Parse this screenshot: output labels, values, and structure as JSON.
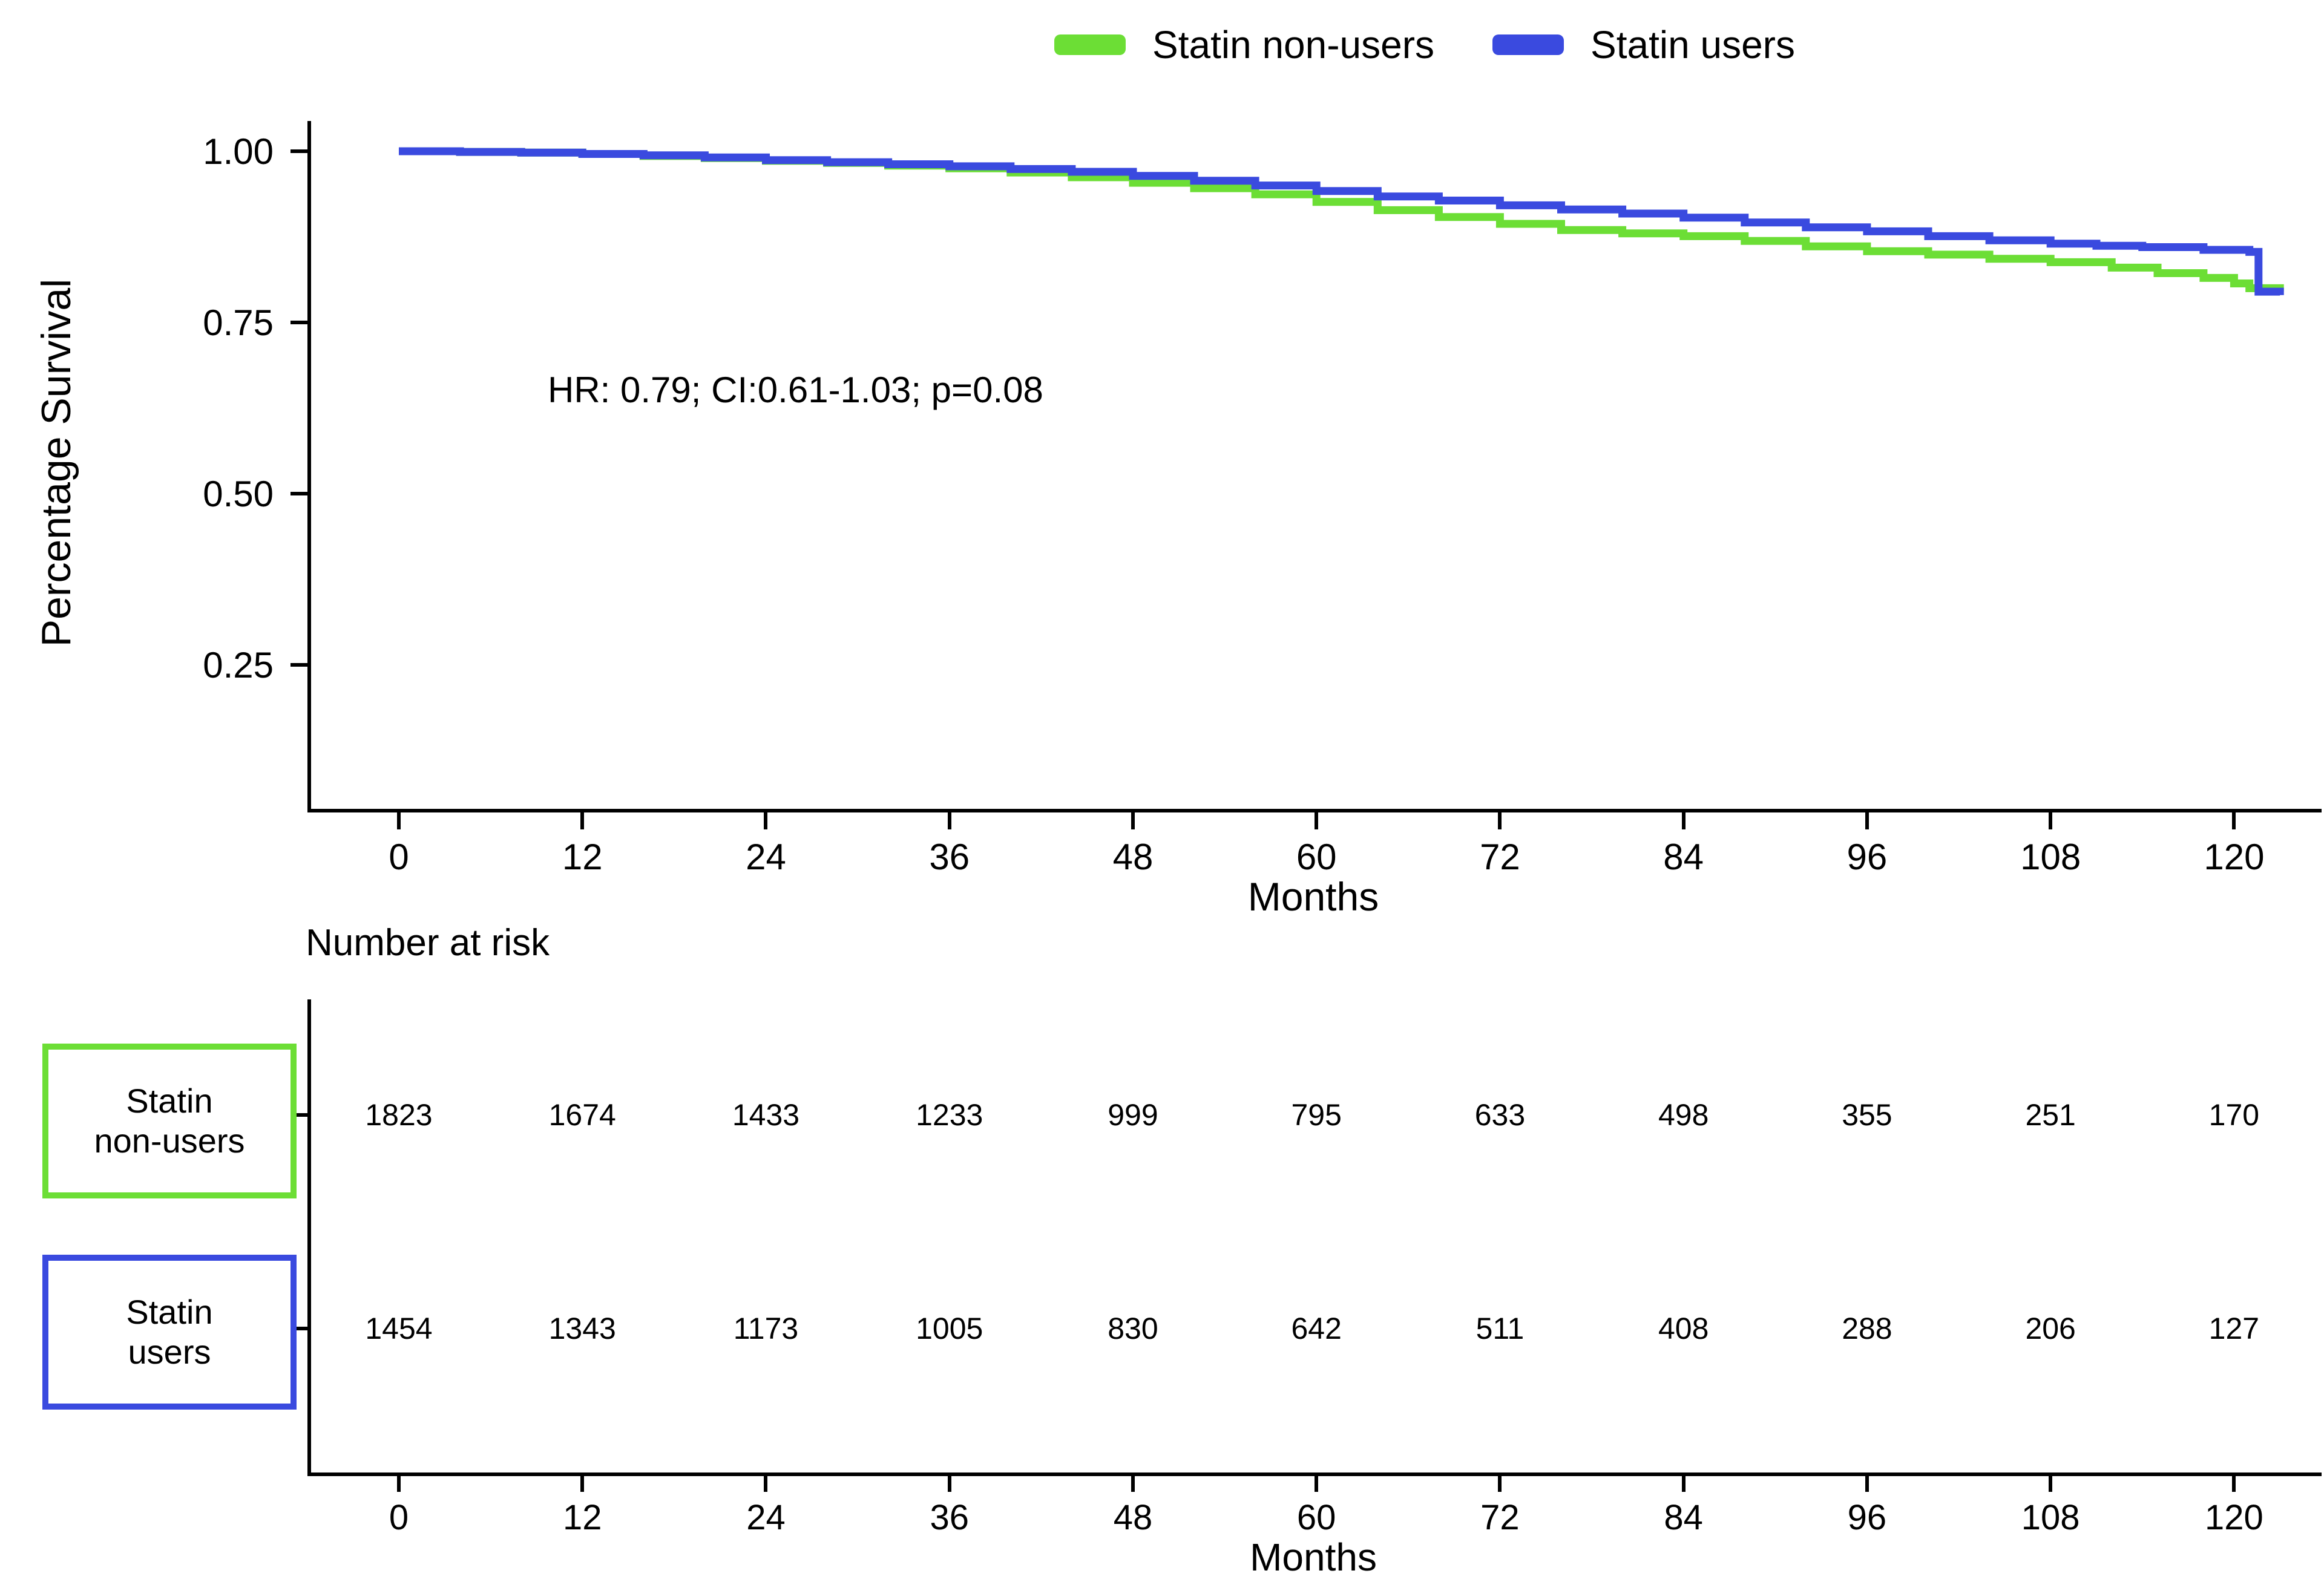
{
  "figure": {
    "legend": {
      "items": [
        {
          "label": "Statin non-users",
          "color": "#6CDE35"
        },
        {
          "label": "Statin users",
          "color": "#3A4ADF"
        }
      ]
    }
  },
  "chart_data": {
    "type": "line",
    "subtype": "kaplan-meier-step",
    "step": "after",
    "title": "",
    "xlabel": "Months",
    "ylabel": "Percentage Survival",
    "annotation": "HR: 0.79; CI:0.61-1.03; p=0.08",
    "xlim": [
      -2,
      124
    ],
    "ylim": [
      0.03,
      1.04
    ],
    "x_ticks": [
      0,
      12,
      24,
      36,
      48,
      60,
      72,
      84,
      96,
      108,
      120
    ],
    "y_ticks": [
      {
        "label": "1.00",
        "value": 1.0
      },
      {
        "label": "0.75",
        "value": 0.75
      },
      {
        "label": "0.50",
        "value": 0.5
      },
      {
        "label": "0.25",
        "value": 0.25
      }
    ],
    "grid": false,
    "legend_position": "top",
    "series": [
      {
        "name": "Statin non-users",
        "color": "#6CDE35",
        "x": [
          0,
          4,
          8,
          12,
          16,
          20,
          24,
          28,
          32,
          36,
          40,
          44,
          48,
          52,
          56,
          60,
          64,
          68,
          72,
          76,
          80,
          84,
          88,
          92,
          96,
          100,
          104,
          108,
          112,
          115,
          118,
          120,
          121,
          123
        ],
        "y": [
          1.0,
          0.999,
          0.998,
          0.996,
          0.993,
          0.99,
          0.986,
          0.983,
          0.979,
          0.975,
          0.969,
          0.962,
          0.954,
          0.946,
          0.937,
          0.926,
          0.914,
          0.904,
          0.894,
          0.885,
          0.88,
          0.876,
          0.869,
          0.861,
          0.854,
          0.849,
          0.843,
          0.838,
          0.83,
          0.822,
          0.815,
          0.807,
          0.8,
          0.795
        ]
      },
      {
        "name": "Statin users",
        "color": "#3A4ADF",
        "x": [
          0,
          4,
          8,
          12,
          16,
          20,
          24,
          28,
          32,
          36,
          40,
          44,
          48,
          52,
          56,
          60,
          64,
          68,
          72,
          76,
          80,
          84,
          88,
          92,
          96,
          100,
          104,
          108,
          111,
          114,
          118,
          121,
          121.6,
          123
        ],
        "y": [
          1.0,
          0.999,
          0.998,
          0.996,
          0.994,
          0.991,
          0.987,
          0.984,
          0.981,
          0.978,
          0.974,
          0.97,
          0.964,
          0.957,
          0.95,
          0.942,
          0.934,
          0.928,
          0.921,
          0.915,
          0.909,
          0.903,
          0.896,
          0.889,
          0.883,
          0.876,
          0.87,
          0.865,
          0.862,
          0.86,
          0.856,
          0.853,
          0.795,
          0.79
        ]
      }
    ],
    "number_at_risk": {
      "title": "Number at risk",
      "xlabel": "Months",
      "months": [
        0,
        12,
        24,
        36,
        48,
        60,
        72,
        84,
        96,
        108,
        120
      ],
      "rows": [
        {
          "group": "Statin non-users",
          "label_lines": [
            "Statin",
            "non-users"
          ],
          "color": "#6CDE35",
          "values": [
            1823,
            1674,
            1433,
            1233,
            999,
            795,
            633,
            498,
            355,
            251,
            170
          ]
        },
        {
          "group": "Statin users",
          "label_lines": [
            "Statin",
            "users"
          ],
          "color": "#3A4ADF",
          "values": [
            1454,
            1343,
            1173,
            1005,
            830,
            642,
            511,
            408,
            288,
            206,
            127
          ]
        }
      ]
    }
  }
}
